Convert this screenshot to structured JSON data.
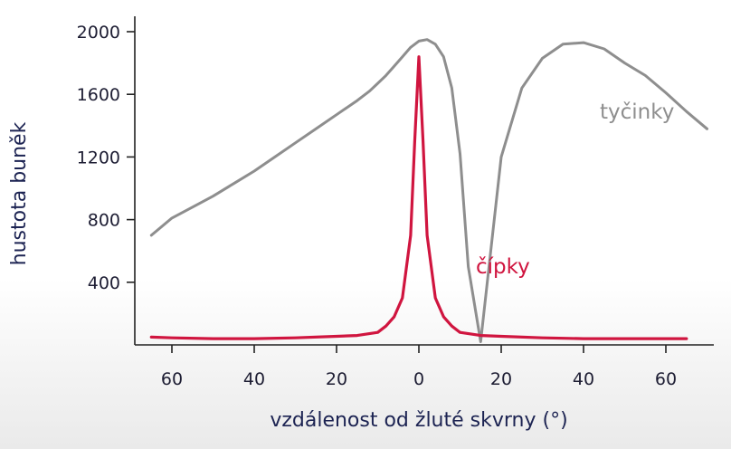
{
  "chart_data": {
    "type": "line",
    "xlabel": "vzdálenost od žluté skvrny (°)",
    "ylabel": "hustota buněk",
    "xlim": [
      -70,
      70
    ],
    "ylim": [
      0,
      2000
    ],
    "xticks": [
      {
        "value": -60,
        "label": "60"
      },
      {
        "value": -40,
        "label": "40"
      },
      {
        "value": -20,
        "label": "20"
      },
      {
        "value": 0,
        "label": "0"
      },
      {
        "value": 20,
        "label": "20"
      },
      {
        "value": 40,
        "label": "40"
      },
      {
        "value": 60,
        "label": "60"
      }
    ],
    "yticks": [
      {
        "value": 400,
        "label": "400"
      },
      {
        "value": 800,
        "label": "800"
      },
      {
        "value": 1200,
        "label": "1200"
      },
      {
        "value": 1600,
        "label": "1600"
      },
      {
        "value": 2000,
        "label": "2000"
      }
    ],
    "grid": false,
    "series": [
      {
        "name": "tyčinky",
        "color": "#8e8e8e",
        "x": [
          -65,
          -60,
          -55,
          -50,
          -45,
          -40,
          -35,
          -30,
          -25,
          -20,
          -15,
          -12,
          -10,
          -8,
          -6,
          -4,
          -2,
          0,
          2,
          4,
          6,
          8,
          10,
          12,
          15,
          20,
          25,
          30,
          35,
          40,
          45,
          50,
          55,
          60,
          65,
          70
        ],
        "y": [
          700,
          810,
          880,
          950,
          1030,
          1110,
          1200,
          1290,
          1380,
          1470,
          1560,
          1620,
          1670,
          1720,
          1780,
          1840,
          1900,
          1940,
          1950,
          1920,
          1840,
          1640,
          1220,
          500,
          20,
          1200,
          1640,
          1830,
          1920,
          1930,
          1890,
          1800,
          1720,
          1610,
          1490,
          1380
        ]
      },
      {
        "name": "čípky",
        "color": "#d0153f",
        "x": [
          -65,
          -60,
          -50,
          -40,
          -30,
          -20,
          -15,
          -10,
          -8,
          -6,
          -4,
          -2,
          -1,
          0,
          1,
          2,
          4,
          6,
          8,
          10,
          15,
          20,
          30,
          40,
          50,
          60,
          65
        ],
        "y": [
          50,
          45,
          40,
          40,
          45,
          55,
          60,
          80,
          120,
          180,
          300,
          700,
          1300,
          1840,
          1300,
          700,
          300,
          180,
          120,
          80,
          60,
          55,
          45,
          40,
          40,
          40,
          40
        ]
      }
    ],
    "annotations": [
      {
        "text": "tyčinky",
        "x": 62,
        "y": 1480
      },
      {
        "text": "čípky",
        "x": 21,
        "y": 500
      }
    ]
  }
}
